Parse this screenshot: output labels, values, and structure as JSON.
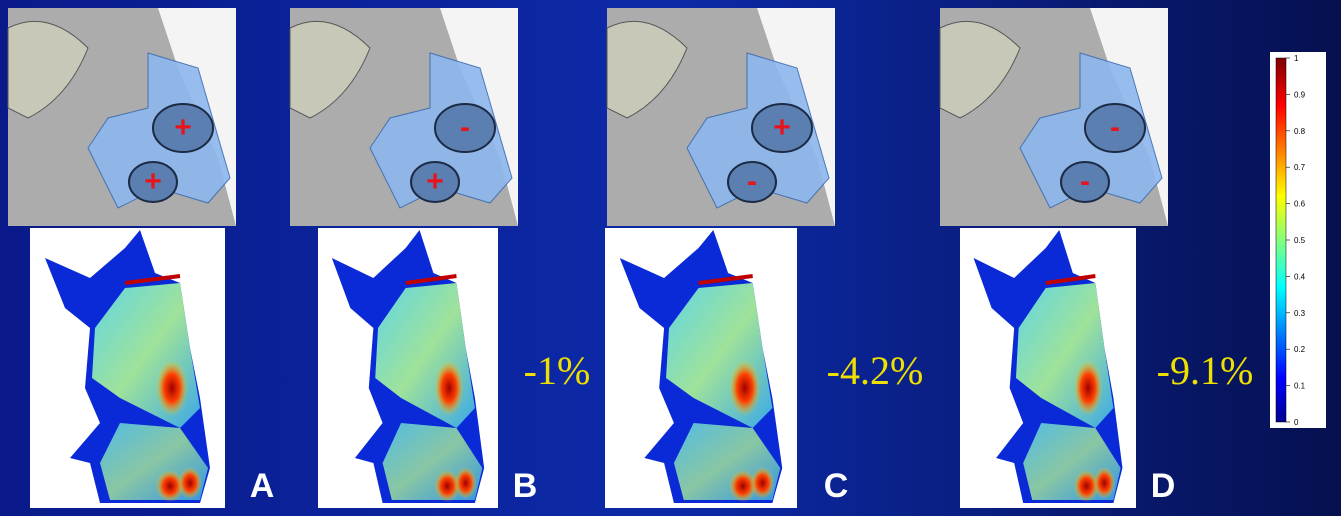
{
  "panels": [
    {
      "label": "A",
      "upper_sign": "+",
      "lower_sign": "+"
    },
    {
      "label": "B",
      "upper_sign": "-",
      "lower_sign": "+",
      "change": "-1%"
    },
    {
      "label": "C",
      "upper_sign": "+",
      "lower_sign": "-",
      "change": "-4.2%"
    },
    {
      "label": "D",
      "upper_sign": "-",
      "lower_sign": "-",
      "change": "-9.1%"
    }
  ],
  "colorbar": {
    "lim": [
      0,
      1
    ],
    "ticks": [
      0,
      0.1,
      0.2,
      0.3,
      0.4,
      0.5,
      0.6,
      0.7,
      0.8,
      0.9,
      1
    ]
  }
}
